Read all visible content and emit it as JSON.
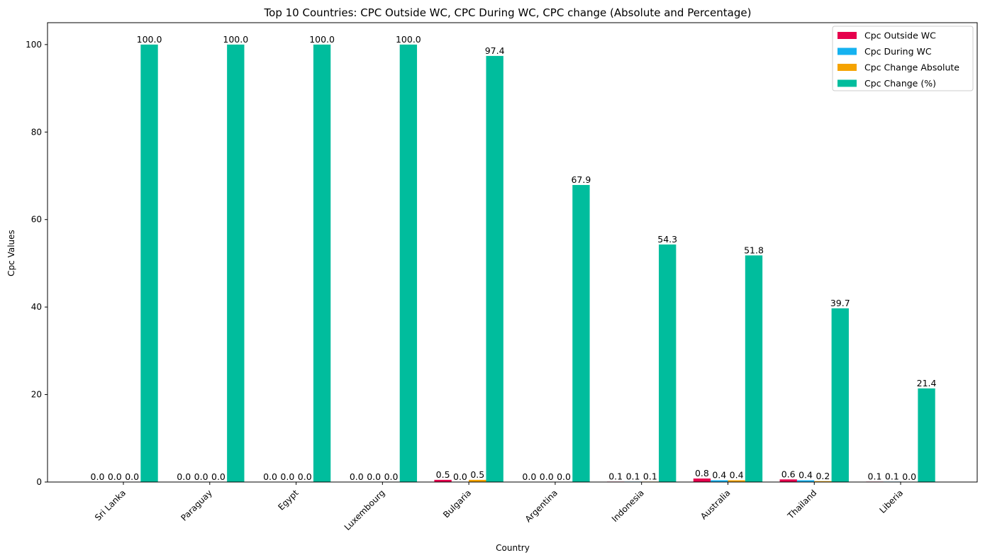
{
  "chart_data": {
    "type": "bar",
    "title": "Top 10 Countries: CPC Outside WC, CPC During WC, CPC change (Absolute and Percentage)",
    "xlabel": "Country",
    "ylabel": "Cpc Values",
    "ylim": [
      0,
      105
    ],
    "yticks": [
      0,
      20,
      40,
      60,
      80,
      100
    ],
    "grid": false,
    "legend_position": "top-right",
    "categories": [
      "Sri Lanka",
      "Paraguay",
      "Egypt",
      "Luxembourg",
      "Bulgaria",
      "Argentina",
      "Indonesia",
      "Australia",
      "Thailand",
      "Liberia"
    ],
    "series": [
      {
        "name": "Cpc Outside WC",
        "color": "#e6004c",
        "values": [
          0.0,
          0.0,
          0.0,
          0.0,
          0.5,
          0.0,
          0.1,
          0.8,
          0.6,
          0.1
        ],
        "labels": [
          "0.0",
          "0.0",
          "0.0",
          "0.0",
          "0.5",
          "0.0",
          "0.1",
          "0.8",
          "0.6",
          "0.1"
        ]
      },
      {
        "name": "Cpc During WC",
        "color": "#15b2f0",
        "values": [
          0.0,
          0.0,
          0.0,
          0.0,
          0.0,
          0.0,
          0.1,
          0.4,
          0.4,
          0.1
        ],
        "labels": [
          "0.0",
          "0.0",
          "0.0",
          "0.0",
          "0.0",
          "0.0",
          "0.1",
          "0.4",
          "0.4",
          "0.1"
        ]
      },
      {
        "name": "Cpc Change Absolute",
        "color": "#f5a300",
        "values": [
          0.0,
          0.0,
          0.0,
          0.0,
          0.5,
          0.0,
          0.1,
          0.4,
          0.2,
          0.0
        ],
        "labels": [
          "0.0",
          "0.0",
          "0.0",
          "0.0",
          "0.5",
          "0.0",
          "0.1",
          "0.4",
          "0.2",
          "0.0"
        ]
      },
      {
        "name": "Cpc Change (%)",
        "color": "#00bd9d",
        "values": [
          100.0,
          100.0,
          100.0,
          100.0,
          97.4,
          67.9,
          54.3,
          51.8,
          39.7,
          21.4
        ],
        "labels": [
          "100.0",
          "100.0",
          "100.0",
          "100.0",
          "97.4",
          "67.9",
          "54.3",
          "51.8",
          "39.7",
          "21.4"
        ]
      }
    ]
  }
}
